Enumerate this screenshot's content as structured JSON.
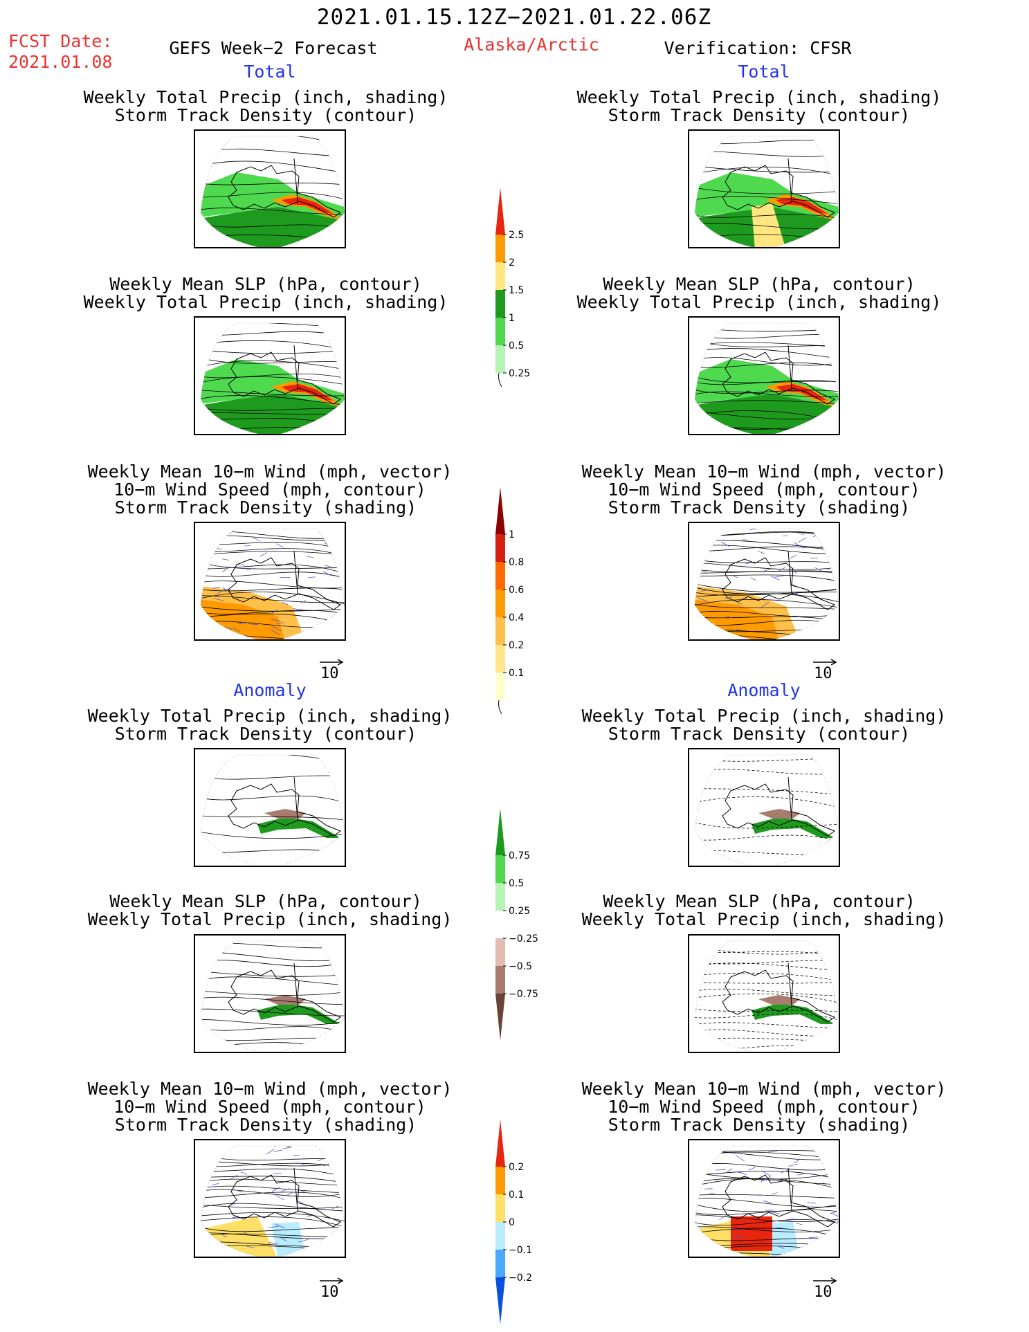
{
  "header": {
    "period": "2021.01.15.12Z−2021.01.22.06Z",
    "fcst_label": "FCST Date:",
    "fcst_date": "2021.01.08",
    "left_title": "GEFS Week−2 Forecast",
    "region": "Alaska/Arctic",
    "right_title": "Verification: CFSR"
  },
  "sections": {
    "total": "Total",
    "anomaly": "Anomaly"
  },
  "panel_titles": {
    "precip_track": [
      "Weekly Total Precip (inch, shading)",
      "Storm Track Density (contour)"
    ],
    "slp_precip": [
      "Weekly Mean SLP (hPa, contour)",
      "Weekly Total Precip (inch, shading)"
    ],
    "wind_track": [
      "Weekly Mean 10−m Wind (mph, vector)",
      "10−m Wind Speed (mph, contour)",
      "Storm Track Density (shading)"
    ]
  },
  "vector_ref": "10",
  "colorbars": {
    "precip_total": {
      "labels": [
        "2.5",
        "2",
        "1.5",
        "1",
        "0.5",
        "0.25"
      ],
      "colors": [
        "#e8250f",
        "#ff9900",
        "#ffe680",
        "#1e9b1e",
        "#4fd94f",
        "#b4f5b4"
      ]
    },
    "track_total": {
      "labels": [
        "1",
        "0.8",
        "0.6",
        "0.4",
        "0.2",
        "0.1"
      ],
      "colors": [
        "#8b0000",
        "#d62010",
        "#ff6a00",
        "#ff9a00",
        "#ffc04a",
        "#ffe68a",
        "#ffffcc"
      ]
    },
    "precip_anom": {
      "labels": [
        "0.75",
        "0.5",
        "0.25",
        "−0.25",
        "−0.5",
        "−0.75"
      ],
      "colors": [
        "#1e9b1e",
        "#4fd94f",
        "#b4f5b4",
        "#ffffff",
        "#e2bcb0",
        "#a77b6e",
        "#6b4236"
      ]
    },
    "track_anom": {
      "labels": [
        "0.2",
        "0.1",
        "0",
        "−0.1",
        "−0.2"
      ],
      "colors": [
        "#e8250f",
        "#ff9900",
        "#ffe066",
        "#b8ecff",
        "#4aa8ff",
        "#0a4fe0"
      ]
    }
  }
}
